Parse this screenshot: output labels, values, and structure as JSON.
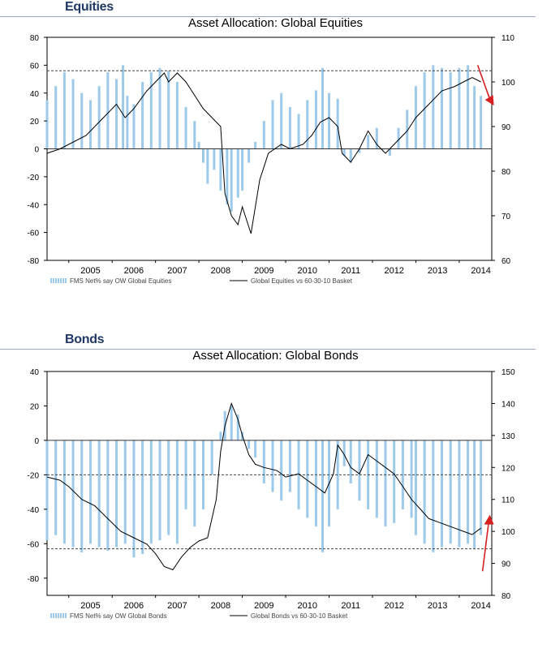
{
  "sections": [
    {
      "label": "Equities"
    },
    {
      "label": "Bonds"
    }
  ],
  "chart_data": [
    {
      "type": "bar",
      "title": "Asset Allocation: Global Equities",
      "x_tick_labels": [
        "2005",
        "2006",
        "2007",
        "2008",
        "2009",
        "2010",
        "2011",
        "2012",
        "2013",
        "2014"
      ],
      "x_start": 2004.5,
      "x_end": 2014.75,
      "y_left": {
        "min": -80,
        "max": 80,
        "ticks": [
          80,
          60,
          40,
          20,
          0,
          -20,
          -40,
          -60,
          -80
        ]
      },
      "y_right": {
        "min": 60,
        "max": 110,
        "ticks": [
          110,
          100,
          90,
          80,
          70,
          60
        ]
      },
      "reference_lines_left": [
        56,
        0
      ],
      "series": [
        {
          "name": "FMS Net% say OW Global Equities",
          "axis": "left",
          "type": "bar",
          "color": "#9ecae9",
          "points": [
            [
              2004.5,
              35
            ],
            [
              2004.7,
              45
            ],
            [
              2004.9,
              55
            ],
            [
              2005.1,
              50
            ],
            [
              2005.3,
              40
            ],
            [
              2005.5,
              35
            ],
            [
              2005.7,
              45
            ],
            [
              2005.9,
              55
            ],
            [
              2006.1,
              50
            ],
            [
              2006.25,
              60
            ],
            [
              2006.35,
              38
            ],
            [
              2006.5,
              32
            ],
            [
              2006.7,
              48
            ],
            [
              2006.9,
              55
            ],
            [
              2007.1,
              58
            ],
            [
              2007.3,
              56
            ],
            [
              2007.5,
              48
            ],
            [
              2007.7,
              30
            ],
            [
              2007.9,
              20
            ],
            [
              2008.0,
              5
            ],
            [
              2008.1,
              -10
            ],
            [
              2008.2,
              -25
            ],
            [
              2008.35,
              -15
            ],
            [
              2008.5,
              -30
            ],
            [
              2008.65,
              -40
            ],
            [
              2008.75,
              -45
            ],
            [
              2008.9,
              -35
            ],
            [
              2009.0,
              -30
            ],
            [
              2009.15,
              -10
            ],
            [
              2009.3,
              5
            ],
            [
              2009.5,
              20
            ],
            [
              2009.7,
              35
            ],
            [
              2009.9,
              40
            ],
            [
              2010.1,
              30
            ],
            [
              2010.3,
              25
            ],
            [
              2010.5,
              35
            ],
            [
              2010.7,
              42
            ],
            [
              2010.85,
              58
            ],
            [
              2011.0,
              40
            ],
            [
              2011.2,
              36
            ],
            [
              2011.35,
              -5
            ],
            [
              2011.5,
              -10
            ],
            [
              2011.7,
              -3
            ],
            [
              2011.9,
              10
            ],
            [
              2012.1,
              15
            ],
            [
              2012.25,
              0
            ],
            [
              2012.4,
              -5
            ],
            [
              2012.6,
              15
            ],
            [
              2012.8,
              28
            ],
            [
              2013.0,
              45
            ],
            [
              2013.2,
              55
            ],
            [
              2013.4,
              60
            ],
            [
              2013.6,
              58
            ],
            [
              2013.8,
              55
            ],
            [
              2014.0,
              58
            ],
            [
              2014.2,
              60
            ],
            [
              2014.35,
              45
            ],
            [
              2014.5,
              38
            ]
          ]
        },
        {
          "name": "Global Equities vs 60-30-10 Basket",
          "axis": "right",
          "type": "line",
          "color": "#000000",
          "points": [
            [
              2004.5,
              84
            ],
            [
              2004.8,
              85
            ],
            [
              2005.0,
              86
            ],
            [
              2005.4,
              88
            ],
            [
              2005.8,
              92
            ],
            [
              2006.1,
              95
            ],
            [
              2006.3,
              92
            ],
            [
              2006.5,
              94
            ],
            [
              2006.8,
              98
            ],
            [
              2007.0,
              100
            ],
            [
              2007.2,
              102
            ],
            [
              2007.3,
              100
            ],
            [
              2007.5,
              102
            ],
            [
              2007.7,
              100
            ],
            [
              2007.9,
              97
            ],
            [
              2008.1,
              94
            ],
            [
              2008.3,
              92
            ],
            [
              2008.5,
              90
            ],
            [
              2008.6,
              75
            ],
            [
              2008.75,
              70
            ],
            [
              2008.9,
              68
            ],
            [
              2009.0,
              72
            ],
            [
              2009.2,
              66
            ],
            [
              2009.4,
              78
            ],
            [
              2009.6,
              84
            ],
            [
              2009.9,
              86
            ],
            [
              2010.1,
              85
            ],
            [
              2010.4,
              86
            ],
            [
              2010.6,
              88
            ],
            [
              2010.8,
              91
            ],
            [
              2011.0,
              92
            ],
            [
              2011.2,
              90
            ],
            [
              2011.3,
              84
            ],
            [
              2011.5,
              82
            ],
            [
              2011.7,
              85
            ],
            [
              2011.9,
              89
            ],
            [
              2012.1,
              86
            ],
            [
              2012.3,
              84
            ],
            [
              2012.5,
              86
            ],
            [
              2012.8,
              89
            ],
            [
              2013.0,
              92
            ],
            [
              2013.3,
              95
            ],
            [
              2013.6,
              98
            ],
            [
              2013.9,
              99
            ],
            [
              2014.1,
              100
            ],
            [
              2014.3,
              101
            ],
            [
              2014.5,
              100
            ]
          ]
        }
      ],
      "annotation_arrow": {
        "direction": "down",
        "color": "#d62020"
      }
    },
    {
      "type": "bar",
      "title": "Asset Allocation: Global Bonds",
      "x_tick_labels": [
        "2005",
        "2006",
        "2007",
        "2008",
        "2009",
        "2010",
        "2011",
        "2012",
        "2013",
        "2014"
      ],
      "x_start": 2004.5,
      "x_end": 2014.75,
      "y_left": {
        "min": -90,
        "max": 40,
        "ticks": [
          40,
          20,
          0,
          -20,
          -40,
          -60,
          -80
        ]
      },
      "y_right": {
        "min": 80,
        "max": 150,
        "ticks": [
          150,
          140,
          130,
          120,
          110,
          100,
          90,
          80
        ]
      },
      "reference_lines_left": [
        0,
        -20,
        -63
      ],
      "series": [
        {
          "name": "FMS Net% say OW Global Bonds",
          "axis": "left",
          "type": "bar",
          "color": "#9ecae9",
          "points": [
            [
              2004.5,
              -58
            ],
            [
              2004.7,
              -55
            ],
            [
              2004.9,
              -60
            ],
            [
              2005.1,
              -62
            ],
            [
              2005.3,
              -65
            ],
            [
              2005.5,
              -60
            ],
            [
              2005.7,
              -62
            ],
            [
              2005.9,
              -64
            ],
            [
              2006.1,
              -62
            ],
            [
              2006.3,
              -60
            ],
            [
              2006.5,
              -68
            ],
            [
              2006.7,
              -66
            ],
            [
              2006.9,
              -60
            ],
            [
              2007.1,
              -58
            ],
            [
              2007.3,
              -55
            ],
            [
              2007.5,
              -60
            ],
            [
              2007.7,
              -40
            ],
            [
              2007.9,
              -50
            ],
            [
              2008.1,
              -40
            ],
            [
              2008.3,
              -20
            ],
            [
              2008.5,
              5
            ],
            [
              2008.6,
              17
            ],
            [
              2008.75,
              20
            ],
            [
              2008.9,
              15
            ],
            [
              2009.0,
              5
            ],
            [
              2009.15,
              -5
            ],
            [
              2009.3,
              -10
            ],
            [
              2009.5,
              -25
            ],
            [
              2009.7,
              -30
            ],
            [
              2009.9,
              -35
            ],
            [
              2010.1,
              -30
            ],
            [
              2010.3,
              -40
            ],
            [
              2010.5,
              -45
            ],
            [
              2010.7,
              -50
            ],
            [
              2010.85,
              -65
            ],
            [
              2011.0,
              -50
            ],
            [
              2011.2,
              -40
            ],
            [
              2011.35,
              -15
            ],
            [
              2011.5,
              -25
            ],
            [
              2011.7,
              -35
            ],
            [
              2011.9,
              -40
            ],
            [
              2012.1,
              -45
            ],
            [
              2012.3,
              -50
            ],
            [
              2012.5,
              -48
            ],
            [
              2012.7,
              -40
            ],
            [
              2012.9,
              -45
            ],
            [
              2013.0,
              -55
            ],
            [
              2013.2,
              -60
            ],
            [
              2013.4,
              -65
            ],
            [
              2013.6,
              -62
            ],
            [
              2013.8,
              -60
            ],
            [
              2014.0,
              -62
            ],
            [
              2014.2,
              -60
            ],
            [
              2014.35,
              -63
            ],
            [
              2014.5,
              -55
            ]
          ]
        },
        {
          "name": "Global Bonds vs 60-30-10 Basket",
          "axis": "right",
          "type": "line",
          "color": "#000000",
          "points": [
            [
              2004.5,
              117
            ],
            [
              2004.8,
              116
            ],
            [
              2005.0,
              114
            ],
            [
              2005.3,
              110
            ],
            [
              2005.6,
              108
            ],
            [
              2005.9,
              104
            ],
            [
              2006.2,
              100
            ],
            [
              2006.5,
              98
            ],
            [
              2006.8,
              96
            ],
            [
              2007.0,
              93
            ],
            [
              2007.2,
              89
            ],
            [
              2007.4,
              88
            ],
            [
              2007.6,
              92
            ],
            [
              2007.8,
              95
            ],
            [
              2008.0,
              97
            ],
            [
              2008.2,
              98
            ],
            [
              2008.4,
              110
            ],
            [
              2008.5,
              125
            ],
            [
              2008.6,
              133
            ],
            [
              2008.75,
              140
            ],
            [
              2008.9,
              135
            ],
            [
              2009.0,
              130
            ],
            [
              2009.15,
              124
            ],
            [
              2009.3,
              121
            ],
            [
              2009.5,
              120
            ],
            [
              2009.8,
              119
            ],
            [
              2010.0,
              117
            ],
            [
              2010.3,
              118
            ],
            [
              2010.5,
              116
            ],
            [
              2010.7,
              114
            ],
            [
              2010.9,
              112
            ],
            [
              2011.1,
              118
            ],
            [
              2011.2,
              127
            ],
            [
              2011.35,
              124
            ],
            [
              2011.5,
              120
            ],
            [
              2011.7,
              118
            ],
            [
              2011.9,
              124
            ],
            [
              2012.1,
              122
            ],
            [
              2012.3,
              120
            ],
            [
              2012.5,
              118
            ],
            [
              2012.7,
              114
            ],
            [
              2012.9,
              110
            ],
            [
              2013.1,
              107
            ],
            [
              2013.3,
              104
            ],
            [
              2013.5,
              103
            ],
            [
              2013.7,
              102
            ],
            [
              2013.9,
              101
            ],
            [
              2014.1,
              100
            ],
            [
              2014.3,
              99
            ],
            [
              2014.5,
              101
            ]
          ]
        }
      ],
      "annotation_arrow": {
        "direction": "up",
        "color": "#d62020"
      }
    }
  ]
}
